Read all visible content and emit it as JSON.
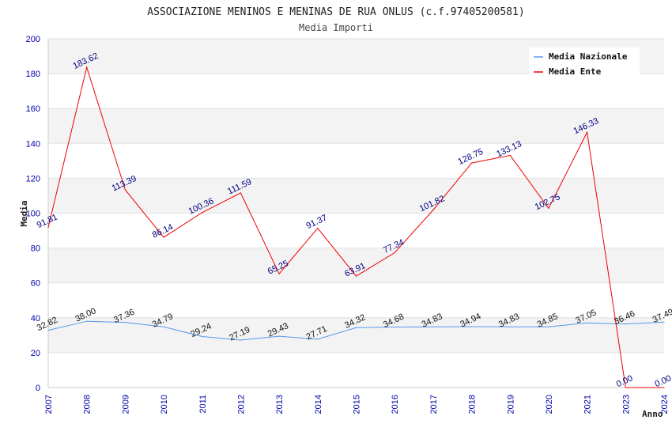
{
  "chart_data": {
    "type": "line",
    "title": "ASSOCIAZIONE MENINOS E MENINAS DE RUA ONLUS (c.f.97405200581)",
    "subtitle": "Media Importi",
    "xlabel": "Anno",
    "ylabel": "Media",
    "ylim": [
      0,
      200
    ],
    "yticks": [
      0,
      20,
      40,
      60,
      80,
      100,
      120,
      140,
      160,
      180,
      200
    ],
    "x": [
      "2007",
      "2008",
      "2009",
      "2010",
      "2011",
      "2012",
      "2013",
      "2014",
      "2015",
      "2016",
      "2017",
      "2018",
      "2019",
      "2020",
      "2021",
      "2023",
      "2024"
    ],
    "grid": "horizontal alternating bands",
    "legend_position": "top-right",
    "series": [
      {
        "name": "Media Nazionale",
        "color": "#5599ee",
        "values": [
          32.82,
          38.0,
          37.36,
          34.79,
          29.24,
          27.19,
          29.43,
          27.71,
          34.32,
          34.68,
          34.83,
          34.94,
          34.83,
          34.85,
          37.05,
          36.46,
          37.49
        ],
        "labels": [
          "32.82",
          "38.00",
          "37.36",
          "34.79",
          "29.24",
          "27.19",
          "29.43",
          "27.71",
          "34.32",
          "34.68",
          "34.83",
          "34.94",
          "34.83",
          "34.85",
          "37.05",
          "36.46",
          "37.49"
        ]
      },
      {
        "name": "Media Ente",
        "color": "#ee0000",
        "values": [
          91.81,
          183.62,
          113.39,
          86.14,
          100.36,
          111.59,
          65.25,
          91.37,
          63.91,
          77.34,
          101.82,
          128.75,
          133.13,
          102.75,
          146.33,
          0.0,
          0.0
        ],
        "labels": [
          "91.81",
          "183.62",
          "113.39",
          "86.14",
          "100.36",
          "111.59",
          "65.25",
          "91.37",
          "63.91",
          "77.34",
          "101.82",
          "128.75",
          "133.13",
          "102.75",
          "146.33",
          "0.00",
          "0.00"
        ]
      }
    ]
  }
}
